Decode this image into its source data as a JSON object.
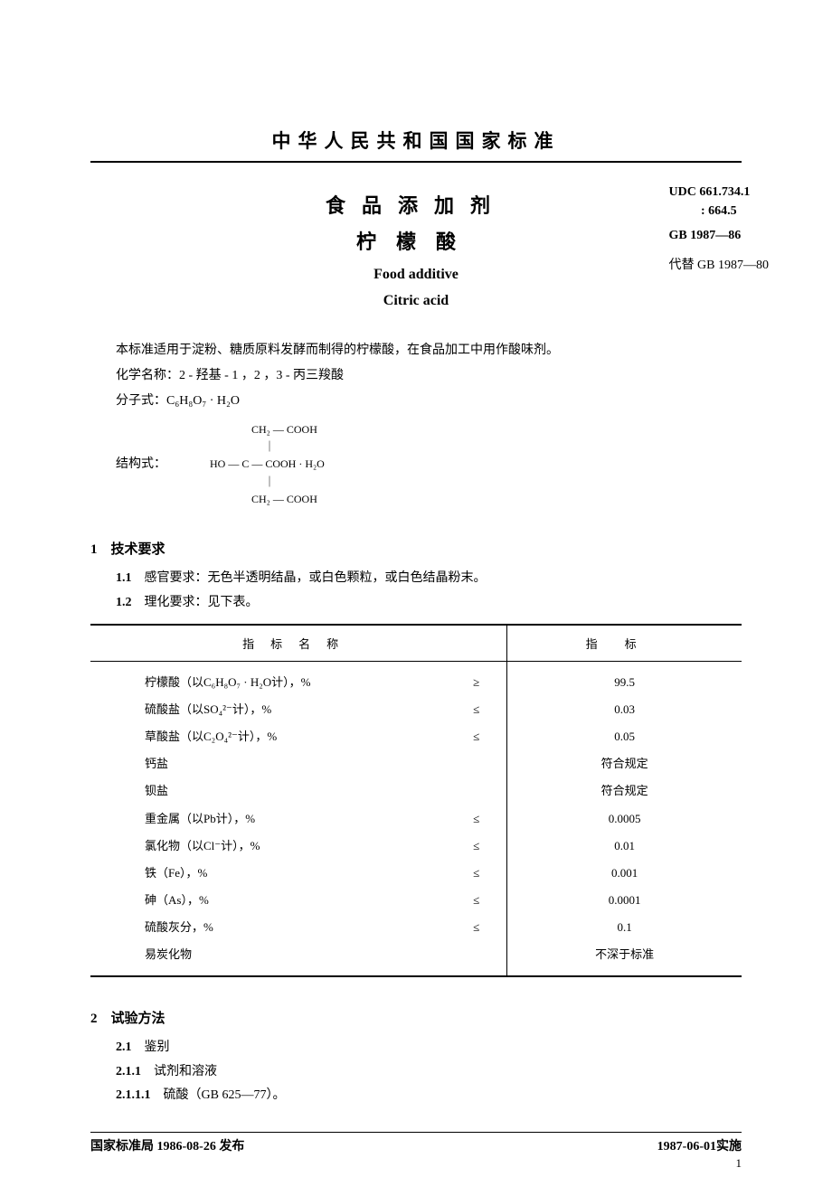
{
  "header": {
    "supertitle": "中华人民共和国国家标准",
    "title_cn_line1": "食品添加剂",
    "title_cn_line2": "柠檬酸",
    "title_en_line1": "Food additive",
    "title_en_line2": "Citric acid",
    "udc_line1": "UDC 661.734.1",
    "udc_line2": ": 664.5",
    "gb_no": "GB 1987—86",
    "replaces": "代替 GB 1987—80"
  },
  "intro": {
    "scope": "本标准适用于淀粉、糖质原料发酵而制得的柠檬酸，在食品加工中用作酸味剂。",
    "chem_name": "化学名称：2 - 羟基 - 1 ，2 ，3 - 丙三羧酸",
    "formula_label": "分子式：",
    "formula": "C₆H₈O₇ · H₂O",
    "structure_label": "结构式：",
    "structure_l1": "CH₂ — COOH",
    "structure_l2": "｜",
    "structure_l3": "HO — C — COOH · H₂O",
    "structure_l4": "｜",
    "structure_l5": "CH₂ — COOH"
  },
  "sections": {
    "s1_title": "1　技术要求",
    "s1_1_num": "1.1",
    "s1_1_text": "感官要求：无色半透明结晶，或白色颗粒，或白色结晶粉末。",
    "s1_2_num": "1.2",
    "s1_2_text": "理化要求：见下表。",
    "s2_title": "2　试验方法",
    "s2_1_num": "2.1",
    "s2_1_text": "鉴别",
    "s2_1_1_num": "2.1.1",
    "s2_1_1_text": "试剂和溶液",
    "s2_1_1_1_num": "2.1.1.1",
    "s2_1_1_1_text": "硫酸（GB 625—77）。"
  },
  "table": {
    "col1_header": "指标名称",
    "col2_header": "指标",
    "rows": [
      {
        "name": "柠檬酸（以C₆H₈O₇ · H₂O计），%",
        "op": "≥",
        "val": "99.5"
      },
      {
        "name": "硫酸盐（以SO₄²⁻计），%",
        "op": "≤",
        "val": "0.03"
      },
      {
        "name": "草酸盐（以C₂O₄²⁻计），%",
        "op": "≤",
        "val": "0.05"
      },
      {
        "name": "钙盐",
        "op": "",
        "val": "符合规定"
      },
      {
        "name": "钡盐",
        "op": "",
        "val": "符合规定"
      },
      {
        "name": "重金属（以Pb计），%",
        "op": "≤",
        "val": "0.0005"
      },
      {
        "name": "氯化物（以Cl⁻计），%",
        "op": "≤",
        "val": "0.01"
      },
      {
        "name": "铁（Fe），%",
        "op": "≤",
        "val": "0.001"
      },
      {
        "name": "砷（As），%",
        "op": "≤",
        "val": "0.0001"
      },
      {
        "name": "硫酸灰分，%",
        "op": "≤",
        "val": "0.1"
      },
      {
        "name": "易炭化物",
        "op": "",
        "val": "不深于标准"
      }
    ]
  },
  "footer": {
    "issued": "国家标准局 1986-08-26 发布",
    "effective": "1987-06-01实施",
    "page": "1"
  }
}
